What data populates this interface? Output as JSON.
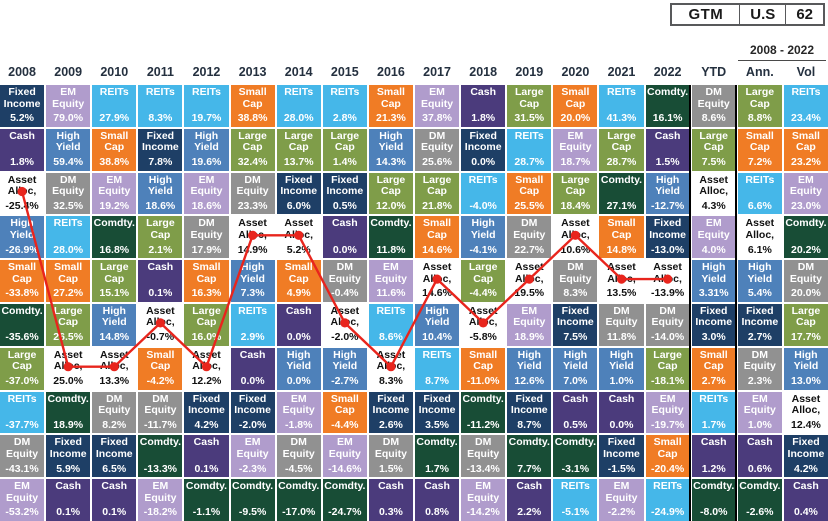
{
  "badge": {
    "items": [
      "GTM",
      "U.S",
      "62"
    ]
  },
  "header": {
    "group_label": "2008 - 2022",
    "columns": [
      "2008",
      "2009",
      "2010",
      "2011",
      "2012",
      "2013",
      "2014",
      "2015",
      "2016",
      "2017",
      "2018",
      "2019",
      "2020",
      "2021",
      "2022",
      "YTD",
      "Ann.",
      "Vol"
    ]
  },
  "palette": {
    "Fixed Income": "#1e3f66",
    "Cash": "#4b3b7c",
    "High Yield": "#4e81ba",
    "Small Cap": "#f07c25",
    "Comdty.": "#184d36",
    "Large Cap": "#7f9d49",
    "REITs": "#45b7e9",
    "DM Equity": "#919191",
    "EM Equity": "#b09ccc",
    "Asset Alloc,": "#ffffff"
  },
  "line_color": "#e8251d",
  "chart_data": {
    "type": "table",
    "title": "Asset class returns quilt (GTM U.S. 62)",
    "legend_note": "Asset Alloc. cells are white and traced by the red line",
    "columns": [
      {
        "label": "2008",
        "cells": [
          {
            "asset": "Fixed Income",
            "value": "5.2%"
          },
          {
            "asset": "Cash",
            "value": "1.8%"
          },
          {
            "asset": "Asset Alloc,",
            "value": "-25.4%"
          },
          {
            "asset": "High Yield",
            "value": "-26.9%"
          },
          {
            "asset": "Small Cap",
            "value": "-33.8%"
          },
          {
            "asset": "Comdty.",
            "value": "-35.6%"
          },
          {
            "asset": "Large Cap",
            "value": "-37.0%"
          },
          {
            "asset": "REITs",
            "value": "-37.7%"
          },
          {
            "asset": "DM Equity",
            "value": "-43.1%"
          },
          {
            "asset": "EM Equity",
            "value": "-53.2%"
          }
        ]
      },
      {
        "label": "2009",
        "cells": [
          {
            "asset": "EM Equity",
            "value": "79.0%"
          },
          {
            "asset": "High Yield",
            "value": "59.4%"
          },
          {
            "asset": "DM Equity",
            "value": "32.5%"
          },
          {
            "asset": "REITs",
            "value": "28.0%"
          },
          {
            "asset": "Small Cap",
            "value": "27.2%"
          },
          {
            "asset": "Large Cap",
            "value": "26.5%"
          },
          {
            "asset": "Asset Alloc,",
            "value": "25.0%"
          },
          {
            "asset": "Comdty.",
            "value": "18.9%"
          },
          {
            "asset": "Fixed Income",
            "value": "5.9%"
          },
          {
            "asset": "Cash",
            "value": "0.1%"
          }
        ]
      },
      {
        "label": "2010",
        "cells": [
          {
            "asset": "REITs",
            "value": "27.9%"
          },
          {
            "asset": "Small Cap",
            "value": "38.8%"
          },
          {
            "asset": "EM Equity",
            "value": "19.2%"
          },
          {
            "asset": "Comdty.",
            "value": "16.8%"
          },
          {
            "asset": "Large Cap",
            "value": "15.1%"
          },
          {
            "asset": "High Yield",
            "value": "14.8%"
          },
          {
            "asset": "Asset Alloc,",
            "value": "13.3%"
          },
          {
            "asset": "DM Equity",
            "value": "8.2%"
          },
          {
            "asset": "Fixed Income",
            "value": "6.5%"
          },
          {
            "asset": "Cash",
            "value": "0.1%"
          }
        ]
      },
      {
        "label": "2011",
        "cells": [
          {
            "asset": "REITs",
            "value": "8.3%"
          },
          {
            "asset": "Fixed Income",
            "value": "7.8%"
          },
          {
            "asset": "High Yield",
            "value": "18.6%"
          },
          {
            "asset": "Large Cap",
            "value": "2.1%"
          },
          {
            "asset": "Cash",
            "value": "0.1%"
          },
          {
            "asset": "Asset Alloc,",
            "value": "-0.7%"
          },
          {
            "asset": "Small Cap",
            "value": "-4.2%"
          },
          {
            "asset": "DM Equity",
            "value": "-11.7%"
          },
          {
            "asset": "Comdty.",
            "value": "-13.3%"
          },
          {
            "asset": "EM Equity",
            "value": "-18.2%"
          }
        ]
      },
      {
        "label": "2012",
        "cells": [
          {
            "asset": "REITs",
            "value": "19.7%"
          },
          {
            "asset": "High Yield",
            "value": "19.6%"
          },
          {
            "asset": "EM Equity",
            "value": "18.6%"
          },
          {
            "asset": "DM Equity",
            "value": "17.9%"
          },
          {
            "asset": "Small Cap",
            "value": "16.3%"
          },
          {
            "asset": "Large Cap",
            "value": "16.0%"
          },
          {
            "asset": "Asset Alloc,",
            "value": "12.2%"
          },
          {
            "asset": "Fixed Income",
            "value": "4.2%"
          },
          {
            "asset": "Cash",
            "value": "0.1%"
          },
          {
            "asset": "Comdty.",
            "value": "-1.1%"
          }
        ]
      },
      {
        "label": "2013",
        "cells": [
          {
            "asset": "Small Cap",
            "value": "38.8%"
          },
          {
            "asset": "Large Cap",
            "value": "32.4%"
          },
          {
            "asset": "DM Equity",
            "value": "23.3%"
          },
          {
            "asset": "Asset Alloc,",
            "value": "14.9%"
          },
          {
            "asset": "High Yield",
            "value": "7.3%"
          },
          {
            "asset": "REITs",
            "value": "2.9%"
          },
          {
            "asset": "Cash",
            "value": "0.0%"
          },
          {
            "asset": "Fixed Income",
            "value": "-2.0%"
          },
          {
            "asset": "EM Equity",
            "value": "-2.3%"
          },
          {
            "asset": "Comdty.",
            "value": "-9.5%"
          }
        ]
      },
      {
        "label": "2014",
        "cells": [
          {
            "asset": "REITs",
            "value": "28.0%"
          },
          {
            "asset": "Large Cap",
            "value": "13.7%"
          },
          {
            "asset": "Fixed Income",
            "value": "6.0%"
          },
          {
            "asset": "Asset Alloc,",
            "value": "5.2%"
          },
          {
            "asset": "Small Cap",
            "value": "4.9%"
          },
          {
            "asset": "Cash",
            "value": "0.0%"
          },
          {
            "asset": "High Yield",
            "value": "0.0%"
          },
          {
            "asset": "EM Equity",
            "value": "-1.8%"
          },
          {
            "asset": "DM Equity",
            "value": "-4.5%"
          },
          {
            "asset": "Comdty.",
            "value": "-17.0%"
          }
        ]
      },
      {
        "label": "2015",
        "cells": [
          {
            "asset": "REITs",
            "value": "2.8%"
          },
          {
            "asset": "Large Cap",
            "value": "1.4%"
          },
          {
            "asset": "Fixed Income",
            "value": "0.5%"
          },
          {
            "asset": "Cash",
            "value": "0.0%"
          },
          {
            "asset": "DM Equity",
            "value": "-0.4%"
          },
          {
            "asset": "Asset Alloc,",
            "value": "-2.0%"
          },
          {
            "asset": "High Yield",
            "value": "-2.7%"
          },
          {
            "asset": "Small Cap",
            "value": "-4.4%"
          },
          {
            "asset": "EM Equity",
            "value": "-14.6%"
          },
          {
            "asset": "Comdty.",
            "value": "-24.7%"
          }
        ]
      },
      {
        "label": "2016",
        "cells": [
          {
            "asset": "Small Cap",
            "value": "21.3%"
          },
          {
            "asset": "High Yield",
            "value": "14.3%"
          },
          {
            "asset": "Large Cap",
            "value": "12.0%"
          },
          {
            "asset": "Comdty.",
            "value": "11.8%"
          },
          {
            "asset": "EM Equity",
            "value": "11.6%"
          },
          {
            "asset": "REITs",
            "value": "8.6%"
          },
          {
            "asset": "Asset Alloc,",
            "value": "8.3%"
          },
          {
            "asset": "Fixed Income",
            "value": "2.6%"
          },
          {
            "asset": "DM Equity",
            "value": "1.5%"
          },
          {
            "asset": "Cash",
            "value": "0.3%"
          }
        ]
      },
      {
        "label": "2017",
        "cells": [
          {
            "asset": "EM Equity",
            "value": "37.8%"
          },
          {
            "asset": "DM Equity",
            "value": "25.6%"
          },
          {
            "asset": "Large Cap",
            "value": "21.8%"
          },
          {
            "asset": "Small Cap",
            "value": "14.6%"
          },
          {
            "asset": "Asset Alloc,",
            "value": "14.6%"
          },
          {
            "asset": "High Yield",
            "value": "10.4%"
          },
          {
            "asset": "REITs",
            "value": "8.7%"
          },
          {
            "asset": "Fixed Income",
            "value": "3.5%"
          },
          {
            "asset": "Comdty.",
            "value": "1.7%"
          },
          {
            "asset": "Cash",
            "value": "0.8%"
          }
        ]
      },
      {
        "label": "2018",
        "cells": [
          {
            "asset": "Cash",
            "value": "1.8%"
          },
          {
            "asset": "Fixed Income",
            "value": "0.0%"
          },
          {
            "asset": "REITs",
            "value": "-4.0%"
          },
          {
            "asset": "High Yield",
            "value": "-4.1%"
          },
          {
            "asset": "Large Cap",
            "value": "-4.4%"
          },
          {
            "asset": "Asset Alloc,",
            "value": "-5.8%"
          },
          {
            "asset": "Small Cap",
            "value": "-11.0%"
          },
          {
            "asset": "Comdty.",
            "value": "-11.2%"
          },
          {
            "asset": "DM Equity",
            "value": "-13.4%"
          },
          {
            "asset": "EM Equity",
            "value": "-14.2%"
          }
        ]
      },
      {
        "label": "2019",
        "cells": [
          {
            "asset": "Large Cap",
            "value": "31.5%"
          },
          {
            "asset": "REITs",
            "value": "28.7%"
          },
          {
            "asset": "Small Cap",
            "value": "25.5%"
          },
          {
            "asset": "DM Equity",
            "value": "22.7%"
          },
          {
            "asset": "Asset Alloc,",
            "value": "19.5%"
          },
          {
            "asset": "EM Equity",
            "value": "18.9%"
          },
          {
            "asset": "High Yield",
            "value": "12.6%"
          },
          {
            "asset": "Fixed Income",
            "value": "8.7%"
          },
          {
            "asset": "Comdty.",
            "value": "7.7%"
          },
          {
            "asset": "Cash",
            "value": "2.2%"
          }
        ]
      },
      {
        "label": "2020",
        "cells": [
          {
            "asset": "Small Cap",
            "value": "20.0%"
          },
          {
            "asset": "EM Equity",
            "value": "18.7%"
          },
          {
            "asset": "Large Cap",
            "value": "18.4%"
          },
          {
            "asset": "Asset Alloc,",
            "value": "10.6%"
          },
          {
            "asset": "DM Equity",
            "value": "8.3%"
          },
          {
            "asset": "Fixed Income",
            "value": "7.5%"
          },
          {
            "asset": "High Yield",
            "value": "7.0%"
          },
          {
            "asset": "Cash",
            "value": "0.5%"
          },
          {
            "asset": "Comdty.",
            "value": "-3.1%"
          },
          {
            "asset": "REITs",
            "value": "-5.1%"
          }
        ]
      },
      {
        "label": "2021",
        "cells": [
          {
            "asset": "REITs",
            "value": "41.3%"
          },
          {
            "asset": "Large Cap",
            "value": "28.7%"
          },
          {
            "asset": "Comdty.",
            "value": "27.1%"
          },
          {
            "asset": "Small Cap",
            "value": "14.8%"
          },
          {
            "asset": "Asset Alloc,",
            "value": "13.5%"
          },
          {
            "asset": "DM Equity",
            "value": "11.8%"
          },
          {
            "asset": "High Yield",
            "value": "1.0%"
          },
          {
            "asset": "Cash",
            "value": "0.0%"
          },
          {
            "asset": "Fixed Income",
            "value": "-1.5%"
          },
          {
            "asset": "EM Equity",
            "value": "-2.2%"
          }
        ]
      },
      {
        "label": "2022",
        "cells": [
          {
            "asset": "Comdty.",
            "value": "16.1%"
          },
          {
            "asset": "Cash",
            "value": "1.5%"
          },
          {
            "asset": "High Yield",
            "value": "-12.7%"
          },
          {
            "asset": "Fixed Income",
            "value": "-13.0%"
          },
          {
            "asset": "Asset Alloc,",
            "value": "-13.9%"
          },
          {
            "asset": "DM Equity",
            "value": "-14.0%"
          },
          {
            "asset": "Large Cap",
            "value": "-18.1%"
          },
          {
            "asset": "EM Equity",
            "value": "-19.7%"
          },
          {
            "asset": "Small Cap",
            "value": "-20.4%"
          },
          {
            "asset": "REITs",
            "value": "-24.9%"
          }
        ]
      },
      {
        "label": "YTD",
        "cells": [
          {
            "asset": "DM Equity",
            "value": "8.6%"
          },
          {
            "asset": "Large Cap",
            "value": "7.5%"
          },
          {
            "asset": "Asset Alloc,",
            "value": "4.3%"
          },
          {
            "asset": "EM Equity",
            "value": "4.0%"
          },
          {
            "asset": "High Yield",
            "value": "3.31%"
          },
          {
            "asset": "Fixed Income",
            "value": "3.0%"
          },
          {
            "asset": "Small Cap",
            "value": "2.7%"
          },
          {
            "asset": "REITs",
            "value": "1.7%"
          },
          {
            "asset": "Cash",
            "value": "1.2%"
          },
          {
            "asset": "Comdty.",
            "value": "-8.0%"
          }
        ]
      },
      {
        "label": "Ann.",
        "cells": [
          {
            "asset": "Large Cap",
            "value": "8.8%"
          },
          {
            "asset": "Small Cap",
            "value": "7.2%"
          },
          {
            "asset": "REITs",
            "value": "6.6%"
          },
          {
            "asset": "Asset Alloc,",
            "value": "6.1%"
          },
          {
            "asset": "High Yield",
            "value": "5.4%"
          },
          {
            "asset": "Fixed Income",
            "value": "2.7%"
          },
          {
            "asset": "DM Equity",
            "value": "2.3%"
          },
          {
            "asset": "EM Equity",
            "value": "1.0%"
          },
          {
            "asset": "Cash",
            "value": "0.6%"
          },
          {
            "asset": "Comdty.",
            "value": "-2.6%"
          }
        ]
      },
      {
        "label": "Vol",
        "cells": [
          {
            "asset": "REITs",
            "value": "23.4%"
          },
          {
            "asset": "Small Cap",
            "value": "23.2%"
          },
          {
            "asset": "EM Equity",
            "value": "23.0%"
          },
          {
            "asset": "Comdty.",
            "value": "20.2%"
          },
          {
            "asset": "DM Equity",
            "value": "20.0%"
          },
          {
            "asset": "Large Cap",
            "value": "17.7%"
          },
          {
            "asset": "High Yield",
            "value": "13.0%"
          },
          {
            "asset": "Asset Alloc,",
            "value": "12.4%"
          },
          {
            "asset": "Fixed Income",
            "value": "4.2%"
          },
          {
            "asset": "Cash",
            "value": "0.4%"
          }
        ]
      }
    ],
    "asset_alloc_line_track": [
      {
        "col": 0,
        "row": 2
      },
      {
        "col": 1,
        "row": 6
      },
      {
        "col": 2,
        "row": 6
      },
      {
        "col": 3,
        "row": 5
      },
      {
        "col": 4,
        "row": 6
      },
      {
        "col": 5,
        "row": 3
      },
      {
        "col": 6,
        "row": 3
      },
      {
        "col": 7,
        "row": 5
      },
      {
        "col": 8,
        "row": 6
      },
      {
        "col": 9,
        "row": 4
      },
      {
        "col": 10,
        "row": 5
      },
      {
        "col": 11,
        "row": 4
      },
      {
        "col": 12,
        "row": 3
      },
      {
        "col": 13,
        "row": 4
      },
      {
        "col": 14,
        "row": 4
      }
    ]
  }
}
